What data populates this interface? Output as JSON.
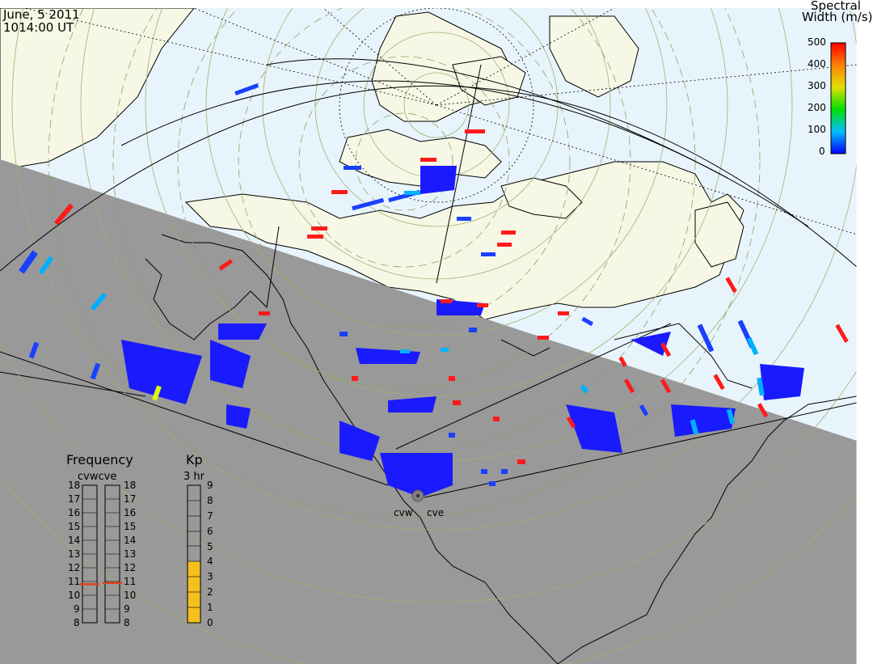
{
  "header": {
    "date": "June, 5 2011",
    "time": "1014:00 UT"
  },
  "colorbar": {
    "title_line1": "Spectral",
    "title_line2": "Width (m/s)",
    "ticks": [
      "500",
      "400",
      "300",
      "200",
      "100",
      "0"
    ]
  },
  "radars": [
    "cvw",
    "cve"
  ],
  "frequency_panel": {
    "title": "Frequency",
    "radars_label": "cvwcve",
    "ticks": [
      "18",
      "17",
      "16",
      "15",
      "14",
      "13",
      "12",
      "11",
      "10",
      "9",
      "8"
    ],
    "values_mhz": {
      "cvw": 10.8,
      "cve": 10.9
    }
  },
  "kp_panel": {
    "title": "Kp",
    "subtitle": "3 hr",
    "ticks": [
      "9",
      "8",
      "7",
      "6",
      "5",
      "4",
      "3",
      "2",
      "1",
      "0"
    ],
    "kp_value": 4
  },
  "colors": {
    "ocean_day": "#e8f4fb",
    "land_day": "#f7f7e6",
    "night_shade": "#999999",
    "scatter_blue": "#1a1aff",
    "scatter_red": "#ff1a1a",
    "kp_fill": "#f5bf1e",
    "freq_marker": "#e04020"
  }
}
